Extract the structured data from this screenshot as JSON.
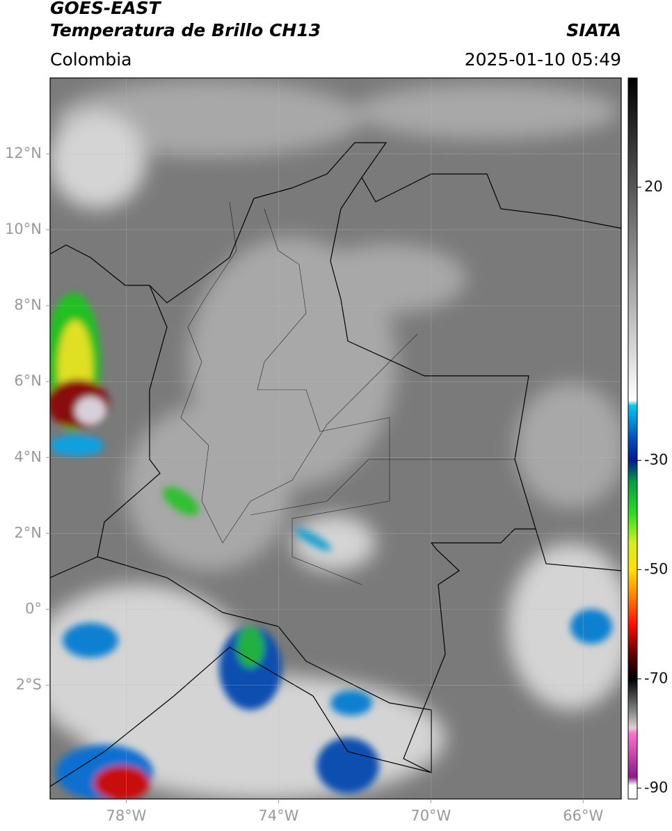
{
  "header": {
    "title": "GOES-EAST",
    "subtitle": "Temperatura de Brillo CH13",
    "source": "SIATA",
    "region": "Colombia",
    "timestamp": "2025-01-10 05:49"
  },
  "map": {
    "lon_range": [
      -80,
      -65
    ],
    "lat_range": [
      -5,
      14
    ],
    "lon_ticks": [
      {
        "value": -78,
        "label": "78°W"
      },
      {
        "value": -74,
        "label": "74°W"
      },
      {
        "value": -70,
        "label": "70°W"
      },
      {
        "value": -66,
        "label": "66°W"
      }
    ],
    "lat_ticks": [
      {
        "value": 12,
        "label": "12°N"
      },
      {
        "value": 10,
        "label": "10°N"
      },
      {
        "value": 8,
        "label": "8°N"
      },
      {
        "value": 6,
        "label": "6°N"
      },
      {
        "value": 4,
        "label": "4°N"
      },
      {
        "value": 2,
        "label": "2°N"
      },
      {
        "value": 0,
        "label": "0°"
      },
      {
        "value": -2,
        "label": "2°S"
      }
    ],
    "grid": true
  },
  "colorbar": {
    "range": [
      -92,
      40
    ],
    "ticks": [
      20,
      -30,
      -50,
      -70,
      -90
    ],
    "stops": [
      {
        "value": 40,
        "color": "#000000"
      },
      {
        "value": -19,
        "color": "#ffffff"
      },
      {
        "value": -20,
        "color": "#00c8f0"
      },
      {
        "value": -26,
        "color": "#0050c0"
      },
      {
        "value": -30,
        "color": "#001a8c"
      },
      {
        "value": -34,
        "color": "#00a040"
      },
      {
        "value": -40,
        "color": "#30e020"
      },
      {
        "value": -45,
        "color": "#d0f020"
      },
      {
        "value": -50,
        "color": "#ffe000"
      },
      {
        "value": -55,
        "color": "#ff8000"
      },
      {
        "value": -60,
        "color": "#ff1000"
      },
      {
        "value": -65,
        "color": "#700000"
      },
      {
        "value": -70,
        "color": "#000000"
      },
      {
        "value": -76,
        "color": "#888888"
      },
      {
        "value": -79,
        "color": "#e0d0d8"
      },
      {
        "value": -80,
        "color": "#ff70d0"
      },
      {
        "value": -88,
        "color": "#8a1a8a"
      },
      {
        "value": -89.5,
        "color": "#ffffff"
      }
    ]
  }
}
